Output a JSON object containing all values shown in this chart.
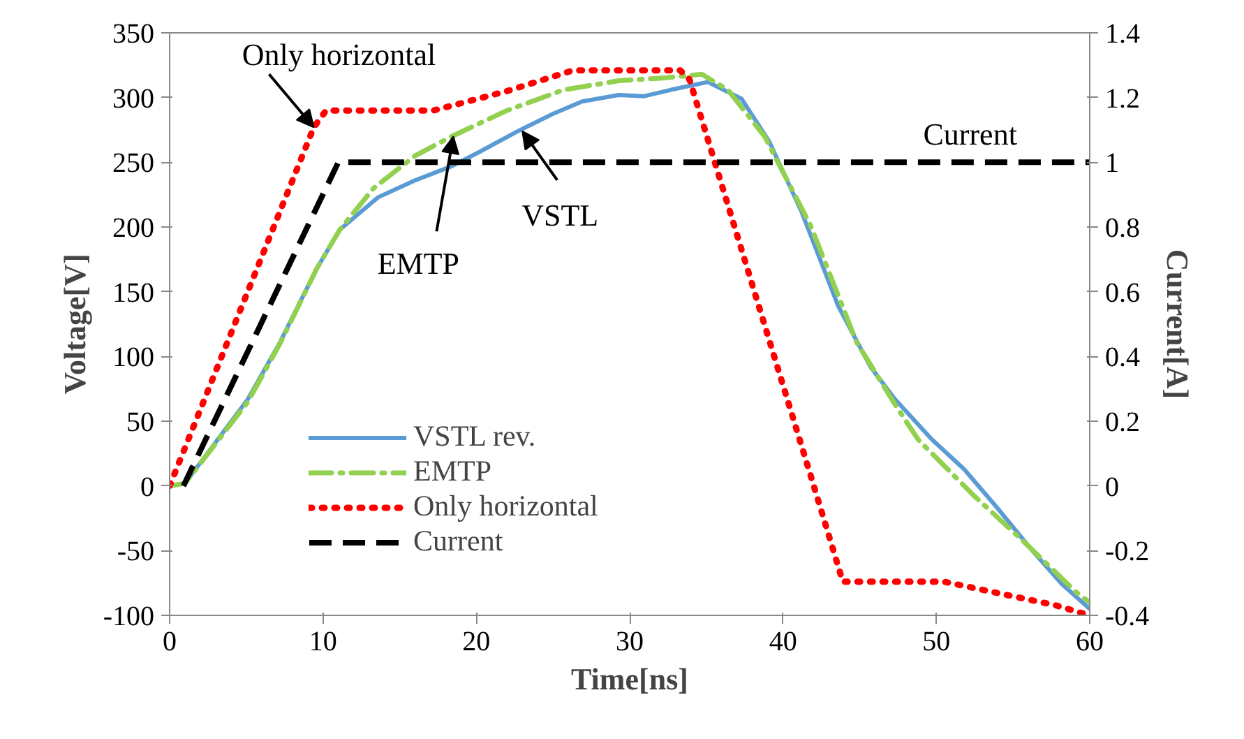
{
  "chart_data": {
    "type": "line",
    "xlabel": "Time[ns]",
    "ylabel": "Voltage[V]",
    "y2label": "Current[A]",
    "xlim": [
      0,
      60
    ],
    "xticks": [
      0,
      10,
      20,
      30,
      40,
      50,
      60
    ],
    "ylim": [
      -100,
      350
    ],
    "yticks": [
      -100,
      -50,
      0,
      50,
      100,
      150,
      200,
      250,
      300,
      350
    ],
    "y2lim": [
      -0.4,
      1.4
    ],
    "y2ticks": [
      -0.4,
      -0.2,
      0,
      0.2,
      0.4,
      0.6,
      0.8,
      1,
      1.2,
      1.4
    ],
    "grid": false,
    "legend": "bottom left",
    "marker": "none",
    "series": [
      {
        "name": "VSTL rev.",
        "color": "#5b9bd5",
        "line_style": "solid",
        "x": [
          0,
          1,
          5.1,
          7.2,
          9.6,
          11.1,
          13.6,
          16,
          18.4,
          20.2,
          22.7,
          25.1,
          26.9,
          29.3,
          30.9,
          32.7,
          35.1,
          37.3,
          39.1,
          41.2,
          43.6,
          45.7,
          47.3,
          49.7,
          51.8,
          53.9,
          56.4,
          58.2,
          60
        ],
        "values": [
          0,
          2,
          67,
          111,
          168,
          198,
          223,
          236,
          247,
          258,
          274,
          288,
          297,
          302,
          301,
          306,
          312,
          299,
          266,
          212,
          139,
          92,
          67,
          36,
          13,
          -16,
          -52,
          -76,
          -95
        ]
      },
      {
        "name": "EMTP",
        "color": "#92d050",
        "line_style": "dashdot",
        "x": [
          0,
          1,
          5.1,
          7.2,
          9.6,
          11.1,
          13.3,
          16,
          18.4,
          22,
          25.7,
          29.3,
          32.1,
          34.7,
          36.4,
          38.8,
          41.8,
          44.8,
          47.3,
          48.8,
          52.4,
          55.7,
          59.1,
          60
        ],
        "values": [
          0,
          2,
          65,
          110,
          168,
          198,
          230,
          255,
          270,
          290,
          306,
          313,
          315,
          318,
          306,
          270,
          201,
          111,
          63,
          36,
          -7,
          -43,
          -82,
          -90
        ]
      },
      {
        "name": "Only horizontal",
        "color": "#ff0000",
        "line_style": "dotted",
        "x": [
          0,
          9.4,
          10.2,
          17.2,
          22,
          26.3,
          33.3,
          33.9,
          41.8,
          43.9,
          50.5,
          54.1,
          57.7,
          60
        ],
        "values": [
          0,
          277,
          290,
          290,
          305,
          321,
          321,
          314,
          8,
          -74,
          -74,
          -83,
          -92,
          -100
        ]
      },
      {
        "name": "Current",
        "color": "#000000",
        "line_style": "dashed",
        "axis": "y2",
        "x": [
          0.9,
          11,
          60
        ],
        "values": [
          0,
          1,
          1
        ]
      }
    ],
    "annotations": [
      {
        "text": "Only horizontal",
        "x": 9.4,
        "y": 277
      },
      {
        "text": "EMTP",
        "x": 18.5,
        "y": 270
      },
      {
        "text": "VSTL",
        "x": 23,
        "y": 274
      },
      {
        "text": "Current",
        "x": 52.2,
        "y": 250
      }
    ]
  }
}
